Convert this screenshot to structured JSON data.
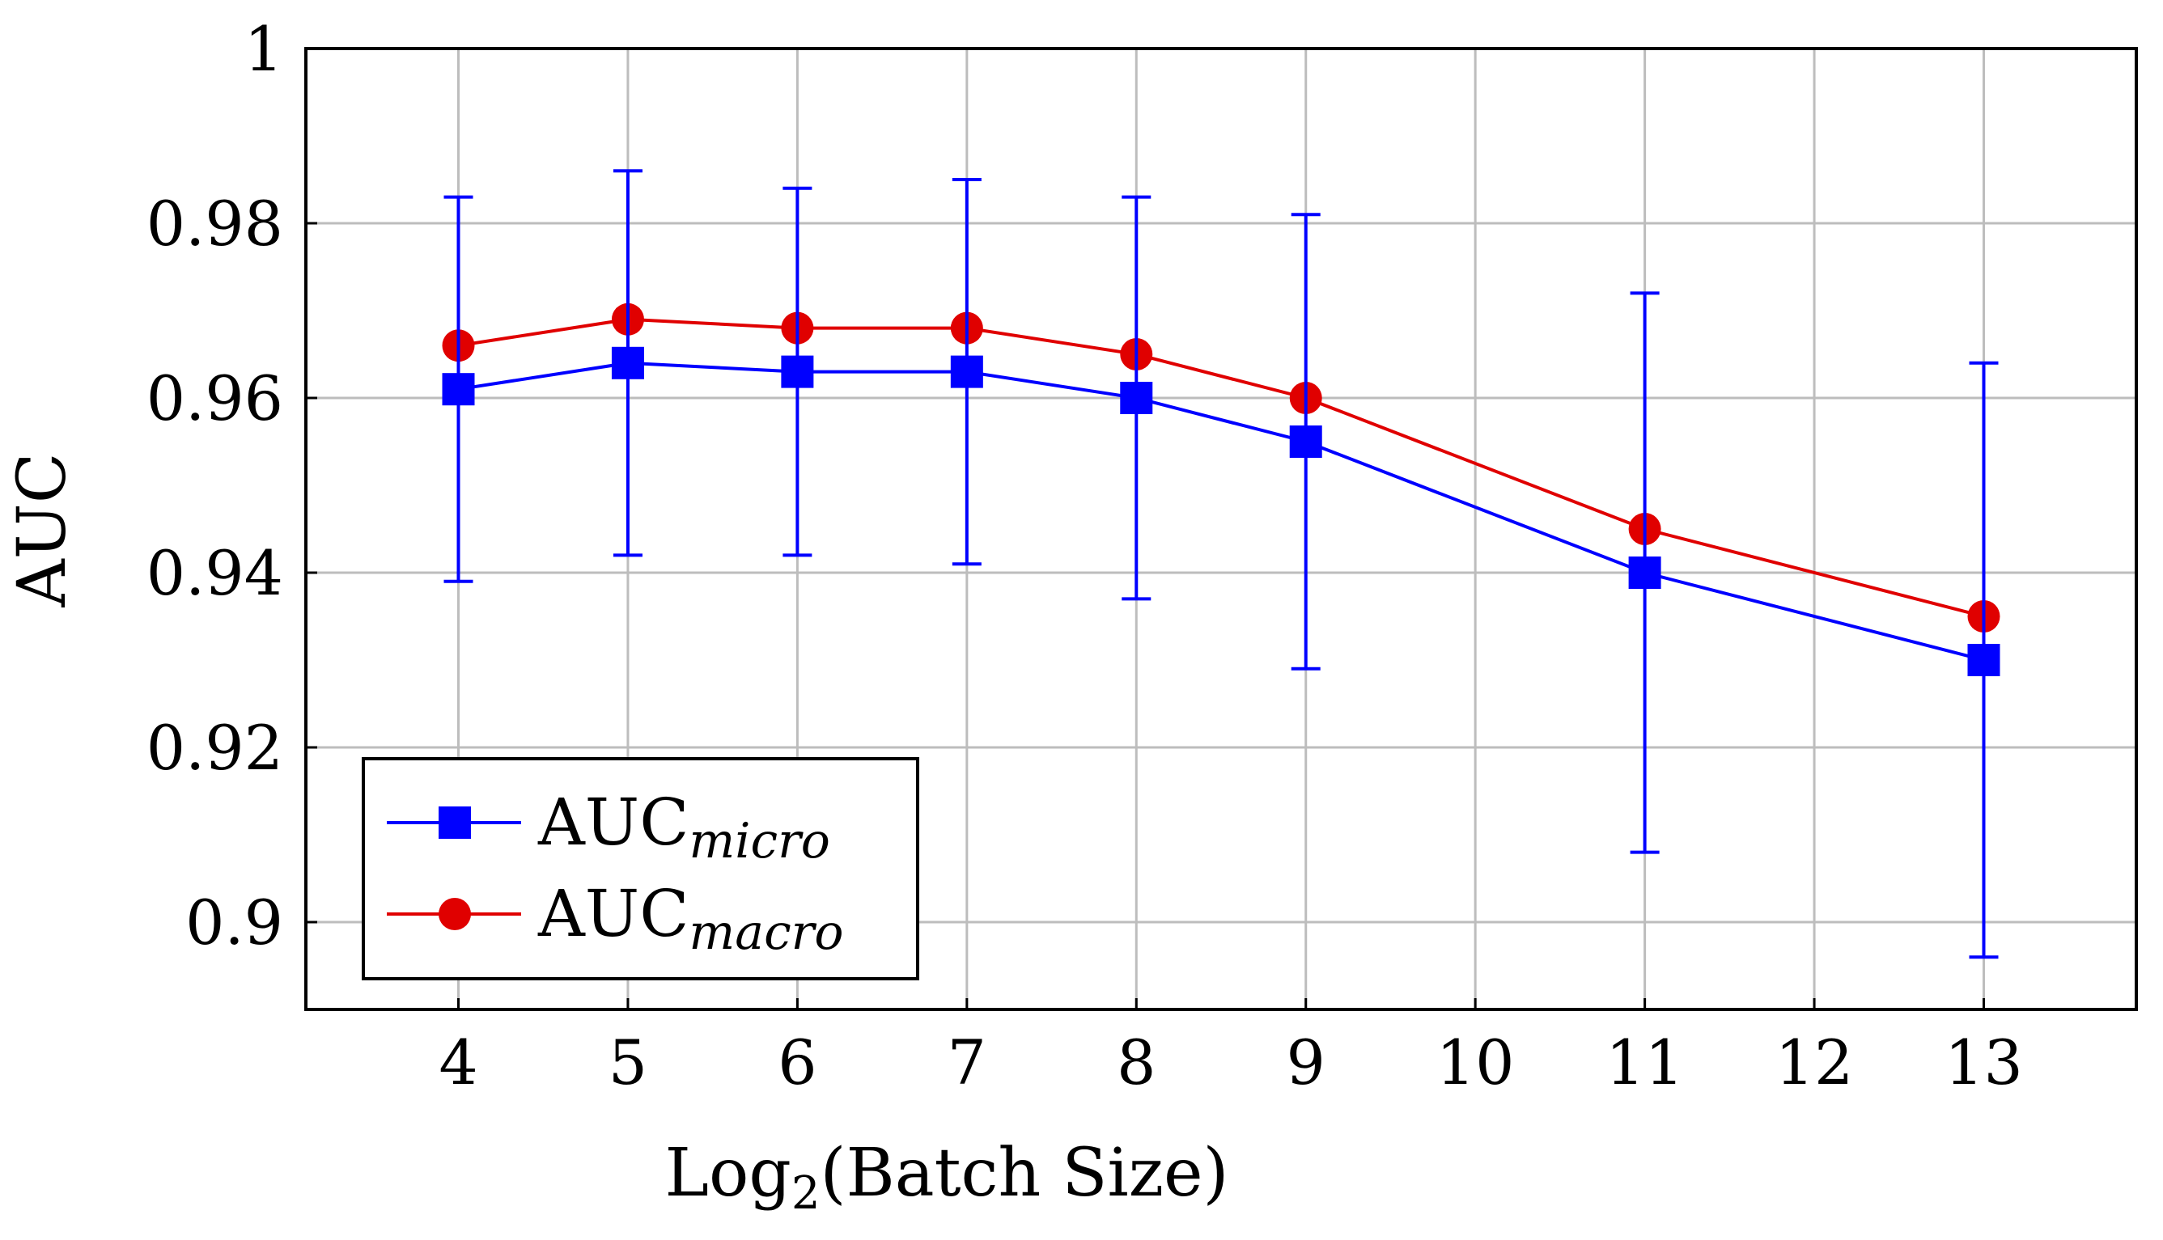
{
  "chart_data": {
    "type": "line",
    "title": "",
    "xlabel_main": "Log",
    "xlabel_sub": "2",
    "xlabel_rest": "(Batch Size)",
    "ylabel": "AUC",
    "x": [
      4,
      5,
      6,
      7,
      8,
      9,
      11,
      13
    ],
    "xticks": [
      "4",
      "5",
      "6",
      "7",
      "8",
      "9",
      "10",
      "11",
      "12",
      "13"
    ],
    "xtick_values": [
      4,
      5,
      6,
      7,
      8,
      9,
      10,
      11,
      12,
      13
    ],
    "xlim": [
      3.1,
      13.9
    ],
    "yticks": [
      "0.9",
      "0.92",
      "0.94",
      "0.96",
      "0.98",
      "1"
    ],
    "ytick_values": [
      0.9,
      0.92,
      0.94,
      0.96,
      0.98,
      1.0
    ],
    "ylim": [
      0.89,
      1.0
    ],
    "grid": true,
    "legend_position": "bottom-left",
    "series": [
      {
        "name": "AUC",
        "name_sub": "micro",
        "color": "#0000ff",
        "marker": "square",
        "values": [
          0.961,
          0.964,
          0.963,
          0.963,
          0.96,
          0.955,
          0.94,
          0.93
        ],
        "error_low": [
          0.939,
          0.942,
          0.942,
          0.941,
          0.937,
          0.929,
          0.908,
          0.896
        ],
        "error_high": [
          0.983,
          0.986,
          0.984,
          0.985,
          0.983,
          0.981,
          0.972,
          0.964
        ]
      },
      {
        "name": "AUC",
        "name_sub": "macro",
        "color": "#e00000",
        "marker": "circle",
        "values": [
          0.966,
          0.969,
          0.968,
          0.968,
          0.965,
          0.96,
          0.945,
          0.935
        ]
      }
    ]
  }
}
